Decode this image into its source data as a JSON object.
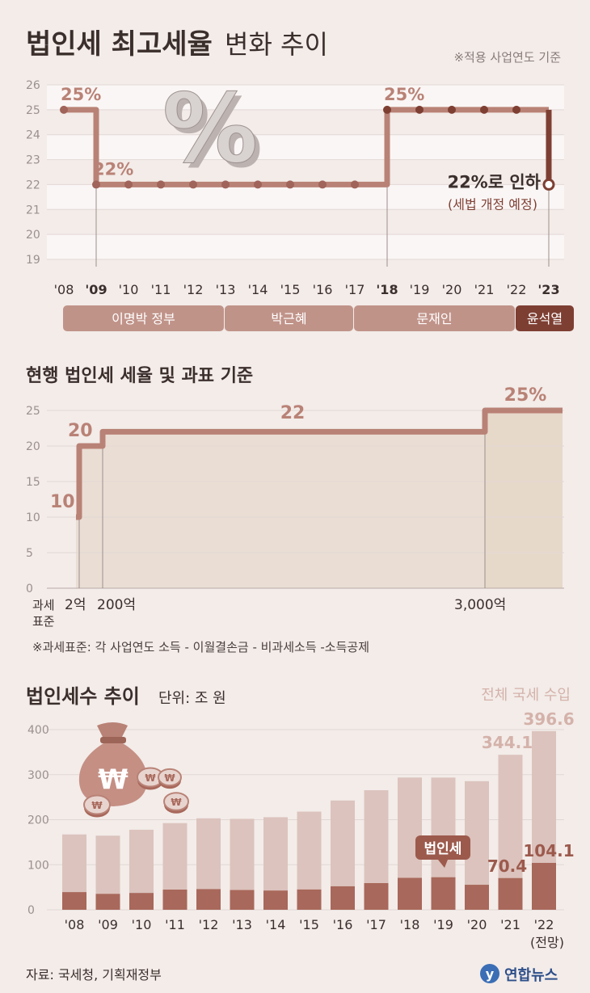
{
  "header": {
    "title_bold": "법인세 최고세율",
    "title_light": "변화 추이",
    "note": "※적용 사업연도 기준",
    "percent_symbol": "%"
  },
  "section2": {
    "title": "현행 법인세 세율 및 과표 기준",
    "xlabel_line1": "과세",
    "xlabel_line2": "표준",
    "footnote": "※과세표준: 각 사업연도 소득 - 이월결손금 - 비과세소득 -소득공제"
  },
  "section3": {
    "title": "법인세수 추이",
    "unit": "단위: 조 원",
    "total_legend": "전체 국세 수입",
    "corp_legend": "법인세",
    "forecast_note": "(전망)"
  },
  "footer": {
    "source": "자료: 국세청, 기획재정부",
    "brand": "연합뉴스",
    "brand_mark": "y"
  },
  "colors": {
    "line": "#b98276",
    "line_dark": "#7e3f33",
    "bar_total": "#dcc3bd",
    "bar_corp": "#a8685b",
    "band": "#c09389",
    "band_dark": "#7e3f33",
    "area": "#e9ddd1"
  },
  "chart_data": [
    {
      "type": "line",
      "title": "법인세 최고세율 변화 추이",
      "x": [
        "'08",
        "'09",
        "'10",
        "'11",
        "'12",
        "'13",
        "'14",
        "'15",
        "'16",
        "'17",
        "'18",
        "'19",
        "'20",
        "'21",
        "'22",
        "'23"
      ],
      "bold_x": [
        "'09",
        "'18",
        "'23"
      ],
      "series": [
        {
          "values": [
            25,
            22,
            22,
            22,
            22,
            22,
            22,
            22,
            22,
            22,
            25,
            25,
            25,
            25,
            25,
            22
          ]
        }
      ],
      "yticks": [
        "19",
        "20",
        "21",
        "22",
        "23",
        "24",
        "25",
        "26"
      ],
      "ylim": [
        19,
        26
      ],
      "step": "pre",
      "grid": true,
      "annotations": [
        {
          "x": "'08",
          "label": "25%"
        },
        {
          "x": "'09",
          "label": "22%"
        },
        {
          "x": "'18",
          "label": "25%"
        },
        {
          "x": "'23",
          "label": "22%로 인하",
          "sublabel": "(세법 개정 예정)"
        }
      ],
      "governments": [
        {
          "name": "이명박 정부",
          "from": "'08",
          "to": "'12"
        },
        {
          "name": "박근혜",
          "from": "'13",
          "to": "'16"
        },
        {
          "name": "문재인",
          "from": "'17",
          "to": "'21"
        },
        {
          "name": "윤석열",
          "from": "'22",
          "to": "'23"
        }
      ]
    },
    {
      "type": "line",
      "title": "현행 법인세 세율 및 과표 기준",
      "brackets": [
        {
          "value": 10,
          "label": "10"
        },
        {
          "value": 20,
          "label": "20",
          "threshold": "2억"
        },
        {
          "value": 22,
          "label": "22",
          "threshold": "200억"
        },
        {
          "value": 25,
          "label": "25%",
          "threshold": "3,000억"
        }
      ],
      "yticks": [
        "0",
        "5",
        "10",
        "15",
        "20",
        "25"
      ],
      "ylim": [
        0,
        25
      ]
    },
    {
      "type": "bar",
      "title": "법인세수 추이",
      "categories": [
        "'08",
        "'09",
        "'10",
        "'11",
        "'12",
        "'13",
        "'14",
        "'15",
        "'16",
        "'17",
        "'18",
        "'19",
        "'20",
        "'21",
        "'22"
      ],
      "series": [
        {
          "name": "전체 국세 수입",
          "values": [
            167.3,
            164.5,
            177.7,
            192.4,
            203.0,
            201.9,
            205.5,
            217.9,
            242.6,
            265.4,
            293.6,
            293.5,
            285.5,
            344.1,
            396.6
          ]
        },
        {
          "name": "법인세",
          "values": [
            39.2,
            35.3,
            37.3,
            44.8,
            45.9,
            43.9,
            42.7,
            45.0,
            52.1,
            59.2,
            70.9,
            72.2,
            55.5,
            70.4,
            104.1
          ]
        }
      ],
      "labels": [
        {
          "category": "'21",
          "series": "전체 국세 수입",
          "text": "344.1"
        },
        {
          "category": "'22",
          "series": "전체 국세 수입",
          "text": "396.6"
        },
        {
          "category": "'21",
          "series": "법인세",
          "text": "70.4"
        },
        {
          "category": "'22",
          "series": "법인세",
          "text": "104.1"
        }
      ],
      "yticks": [
        "0",
        "100",
        "200",
        "300",
        "400"
      ],
      "ylim": [
        0,
        400
      ],
      "icons": [
        "money-bag-icon",
        "won-coin-icon"
      ],
      "coin_symbol": "₩"
    }
  ]
}
